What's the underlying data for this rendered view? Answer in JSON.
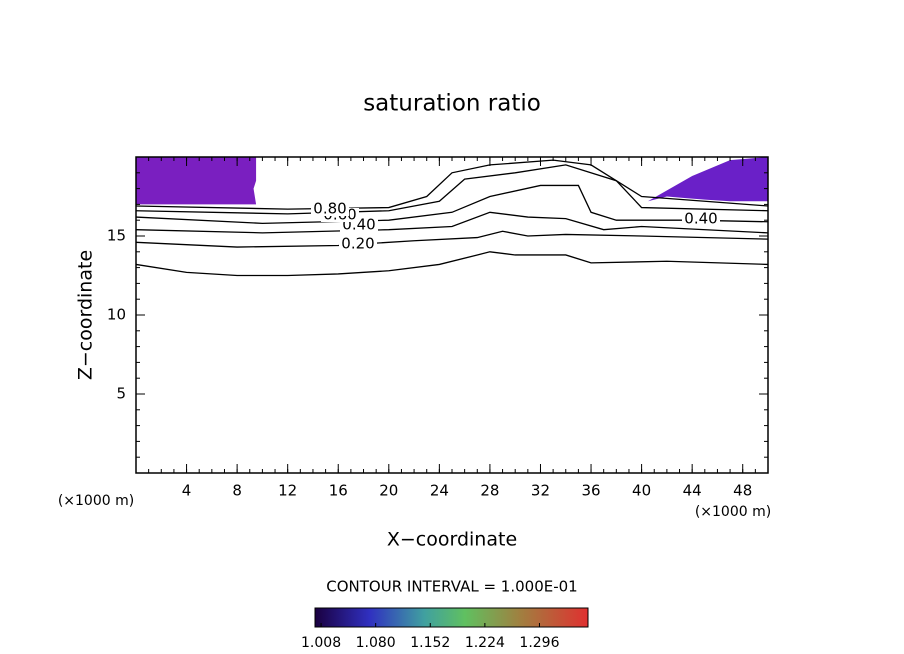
{
  "chart_data": {
    "type": "contour",
    "title": "saturation ratio",
    "xlabel": "X−coordinate",
    "ylabel": "Z−coordinate",
    "x_unit_label": "(×1000 m)",
    "x_unit_label_right": "(×1000 m)",
    "xlim": [
      0,
      50
    ],
    "ylim": [
      0,
      20
    ],
    "xticks": [
      4,
      8,
      12,
      16,
      20,
      24,
      28,
      32,
      36,
      40,
      44,
      48
    ],
    "yticks": [
      5,
      10,
      15
    ],
    "contour_interval_text": "CONTOUR INTERVAL = 1.000E-01",
    "line_color": "#000000",
    "filled_regions": [
      {
        "color": "#7a1fc0",
        "x": [
          0,
          9.5,
          9.5,
          9.3,
          9.5,
          0
        ],
        "y": [
          20,
          20,
          18.5,
          18.0,
          17.0,
          17.0
        ]
      },
      {
        "color": "#6a20c8",
        "x": [
          50,
          50,
          47,
          45,
          43.5,
          42,
          40.5,
          44,
          47
        ],
        "y": [
          20,
          17.2,
          17.2,
          17.3,
          17.4,
          17.5,
          17.2,
          18.8,
          19.8
        ]
      }
    ],
    "contours": [
      {
        "level": 0.1,
        "x": [
          0,
          4,
          8,
          12,
          16,
          20,
          24,
          27,
          28,
          30,
          34,
          36,
          42,
          50
        ],
        "y": [
          13.2,
          12.7,
          12.5,
          12.5,
          12.6,
          12.8,
          13.2,
          13.8,
          14.0,
          13.8,
          13.8,
          13.3,
          13.4,
          13.2
        ]
      },
      {
        "level": 0.2,
        "label": "0.20",
        "x": [
          0,
          8,
          16,
          22,
          27,
          29,
          31,
          34,
          40,
          50
        ],
        "y": [
          14.6,
          14.3,
          14.4,
          14.7,
          14.9,
          15.3,
          15.0,
          15.1,
          15.0,
          14.8
        ]
      },
      {
        "level": 0.3,
        "x": [
          0,
          10,
          20,
          25,
          28,
          31,
          34,
          37,
          40,
          50
        ],
        "y": [
          15.4,
          15.2,
          15.4,
          15.6,
          16.5,
          16.2,
          16.1,
          15.4,
          15.6,
          15.2
        ]
      },
      {
        "level": 0.4,
        "label": "0.40",
        "label_right": "0.40",
        "x": [
          0,
          10,
          20,
          25,
          28,
          32,
          35,
          36,
          38,
          44,
          50
        ],
        "y": [
          16.2,
          15.8,
          16.0,
          16.5,
          17.5,
          18.2,
          18.2,
          16.5,
          16.0,
          16.0,
          15.9
        ]
      },
      {
        "level": 0.6,
        "label": "0.60",
        "x": [
          0,
          12,
          20,
          24,
          26,
          30,
          34,
          38,
          40,
          50
        ],
        "y": [
          16.6,
          16.4,
          16.6,
          17.2,
          18.6,
          19.0,
          19.5,
          18.5,
          16.8,
          16.6
        ]
      },
      {
        "level": 0.8,
        "label": "0.80",
        "x": [
          0,
          12,
          20,
          23,
          25,
          28,
          33,
          36,
          40,
          50
        ],
        "y": [
          16.9,
          16.7,
          16.8,
          17.5,
          19.0,
          19.5,
          19.8,
          19.5,
          17.5,
          16.9
        ]
      }
    ],
    "clim": [
      1.0,
      1.36
    ],
    "cticks": [
      {
        "value": 1.008,
        "label": "1.008"
      },
      {
        "value": 1.08,
        "label": "1.080"
      },
      {
        "value": 1.152,
        "label": "1.152"
      },
      {
        "value": 1.224,
        "label": "1.224"
      },
      {
        "value": 1.296,
        "label": "1.296"
      }
    ]
  }
}
